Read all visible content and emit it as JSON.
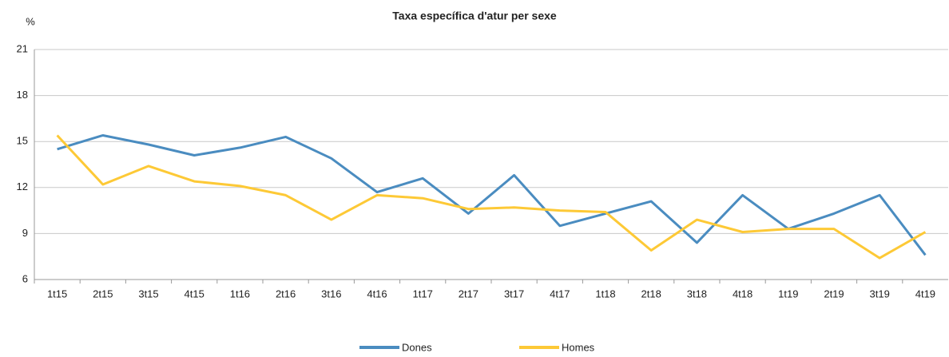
{
  "chart_data": {
    "type": "line",
    "title": "Taxa específica d'atur per sexe",
    "y_label": "%",
    "categories": [
      "1t15",
      "2t15",
      "3t15",
      "4t15",
      "1t16",
      "2t16",
      "3t16",
      "4t16",
      "1t17",
      "2t17",
      "3t17",
      "4t17",
      "1t18",
      "2t18",
      "3t18",
      "4t18",
      "1t19",
      "2t19",
      "3t19",
      "4t19"
    ],
    "series": [
      {
        "name": "Dones",
        "color": "#4a8cc0",
        "values": [
          14.5,
          15.4,
          14.8,
          14.1,
          14.6,
          15.3,
          13.9,
          11.7,
          12.6,
          10.3,
          12.8,
          9.5,
          10.3,
          11.1,
          8.4,
          11.5,
          9.3,
          10.3,
          11.5,
          7.6
        ]
      },
      {
        "name": "Homes",
        "color": "#fdc936",
        "values": [
          15.4,
          12.2,
          13.4,
          12.4,
          12.1,
          11.5,
          9.9,
          11.5,
          11.3,
          10.6,
          10.7,
          10.5,
          10.4,
          7.9,
          9.9,
          9.1,
          9.3,
          9.3,
          7.4,
          9.1
        ]
      }
    ],
    "ylim": [
      6,
      21
    ],
    "yticks": [
      6,
      9,
      12,
      15,
      18,
      21
    ],
    "grid": true,
    "legend": "bottom"
  }
}
